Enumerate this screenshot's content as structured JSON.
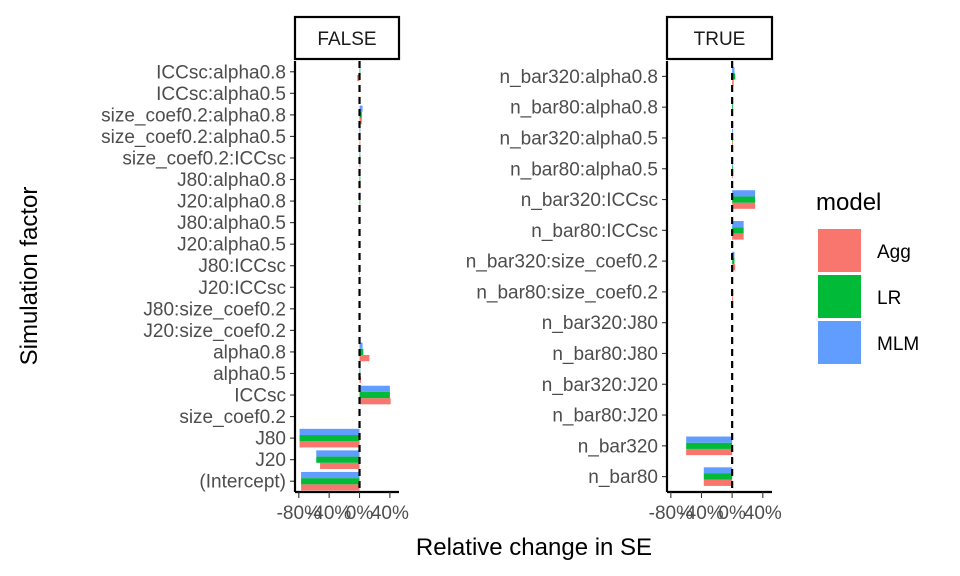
{
  "chart_data": {
    "type": "bar",
    "orientation": "horizontal",
    "xlabel": "Relative change in SE",
    "ylabel": "Simulation factor",
    "xlim": [
      -85,
      52
    ],
    "x_ticks": [
      -80,
      -40,
      0,
      40
    ],
    "x_tick_labels": [
      "-80%",
      "-40%",
      "0%",
      "40%"
    ],
    "grid": false,
    "legend": {
      "title": "model",
      "position": "right",
      "entries": [
        {
          "name": "Agg",
          "color": "#F8766D"
        },
        {
          "name": "LR",
          "color": "#00BA38"
        },
        {
          "name": "MLM",
          "color": "#619CFF"
        }
      ]
    },
    "reference_line": {
      "x": 0,
      "style": "dashed"
    },
    "panels": [
      {
        "label": "FALSE",
        "categories": [
          "ICCsc:alpha0.8",
          "ICCsc:alpha0.5",
          "size_coef0.2:alpha0.8",
          "size_coef0.2:alpha0.5",
          "size_coef0.2:ICCsc",
          "J80:alpha0.8",
          "J20:alpha0.8",
          "J80:alpha0.5",
          "J20:alpha0.5",
          "J80:ICCsc",
          "J20:ICCsc",
          "J80:size_coef0.2",
          "J20:size_coef0.2",
          "alpha0.8",
          "alpha0.5",
          "ICCsc",
          "size_coef0.2",
          "J80",
          "J20",
          "(Intercept)"
        ],
        "series": [
          {
            "name": "Agg",
            "values": [
              -3,
              -1,
              3,
              1,
              0.5,
              0.3,
              0.3,
              0,
              0,
              -0.5,
              0,
              0,
              0,
              13,
              2,
              41,
              0,
              -79,
              -52,
              -77
            ]
          },
          {
            "name": "LR",
            "values": [
              1,
              0,
              3,
              1,
              0.5,
              0.3,
              0.3,
              0,
              0,
              0,
              0,
              0,
              0,
              5,
              1,
              40,
              0,
              -79,
              -57,
              -77
            ]
          },
          {
            "name": "MLM",
            "values": [
              1,
              0,
              4,
              1,
              0.5,
              0.3,
              0.3,
              0,
              0,
              0,
              0,
              0,
              0,
              4,
              1,
              40,
              0,
              -79,
              -57,
              -77
            ]
          }
        ]
      },
      {
        "label": "TRUE",
        "categories": [
          "n_bar320:alpha0.8",
          "n_bar80:alpha0.8",
          "n_bar320:alpha0.5",
          "n_bar80:alpha0.5",
          "n_bar320:ICCsc",
          "n_bar80:ICCsc",
          "n_bar320:size_coef0.2",
          "n_bar80:size_coef0.2",
          "n_bar320:J80",
          "n_bar80:J80",
          "n_bar320:J20",
          "n_bar80:J20",
          "n_bar320",
          "n_bar80"
        ],
        "series": [
          {
            "name": "Agg",
            "values": [
              2,
              0.5,
              0.5,
              0.3,
              30,
              15,
              4,
              0.5,
              0,
              0,
              0,
              0,
              -60,
              -37
            ]
          },
          {
            "name": "LR",
            "values": [
              4,
              0.5,
              0.5,
              0.3,
              30,
              15,
              3,
              0,
              0,
              0,
              0,
              0,
              -60,
              -37
            ]
          },
          {
            "name": "MLM",
            "values": [
              3,
              0.5,
              0.5,
              0.3,
              30,
              15,
              3,
              0,
              0,
              0,
              0,
              0,
              -60,
              -37
            ]
          }
        ]
      }
    ]
  }
}
